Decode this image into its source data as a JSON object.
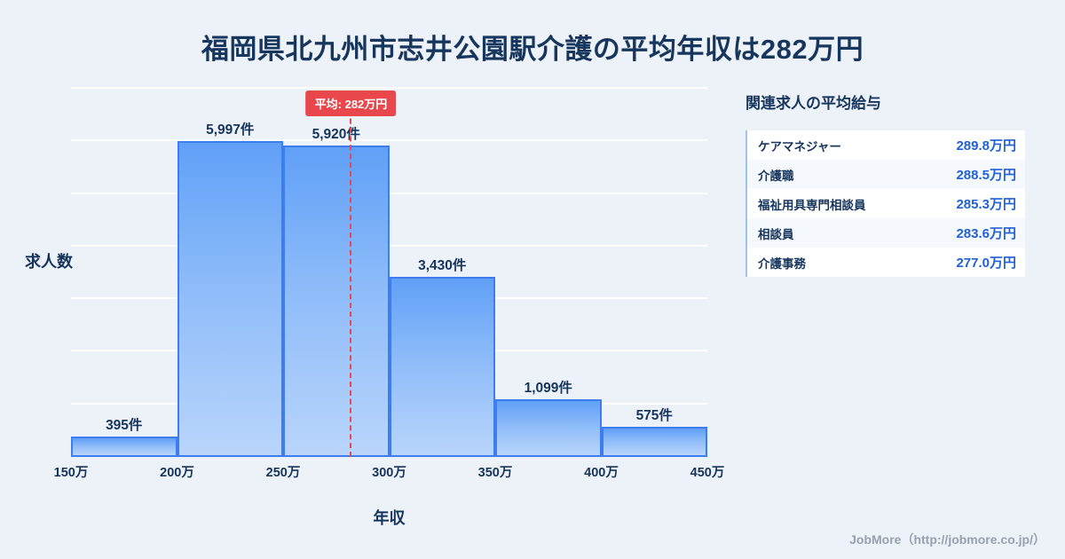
{
  "page": {
    "title": "福岡県北九州市志井公園駅介護の平均年収は282万円",
    "footer": "JobMore（http://jobmore.co.jp/）"
  },
  "chart_data": {
    "type": "bar",
    "title": "福岡県北九州市志井公園駅介護の平均年収は282万円",
    "xlabel": "年収",
    "ylabel": "求人数",
    "categories": [
      "150万",
      "200万",
      "250万",
      "300万",
      "350万",
      "400万",
      "450万"
    ],
    "values": [
      395,
      5997,
      5920,
      3430,
      1099,
      575
    ],
    "bar_labels": [
      "395件",
      "5,997件",
      "5,920件",
      "3,430件",
      "1,099件",
      "575件"
    ],
    "x_range": [
      150,
      450
    ],
    "ylim": [
      0,
      7000
    ],
    "grid_step": 1000,
    "grid": true,
    "legend": false,
    "average": {
      "value": 282,
      "label": "平均: 282万円"
    }
  },
  "side_panel": {
    "heading": "関連求人の平均給与",
    "rows": [
      {
        "label": "ケアマネジャー",
        "value": "289.8万円"
      },
      {
        "label": "介護職",
        "value": "288.5万円"
      },
      {
        "label": "福祉用具専門相談員",
        "value": "285.3万円"
      },
      {
        "label": "相談員",
        "value": "283.6万円"
      },
      {
        "label": "介護事務",
        "value": "277.0万円"
      }
    ]
  },
  "colors": {
    "background": "#edf2f9",
    "title_text": "#17365d",
    "bar_border": "#3d7def",
    "bar_gradient_top": "#60a0f7",
    "bar_gradient_bottom": "#b9d5fb",
    "average_red": "#e8474b",
    "value_blue": "#2061d5",
    "footer_gray": "#97a1ac"
  }
}
